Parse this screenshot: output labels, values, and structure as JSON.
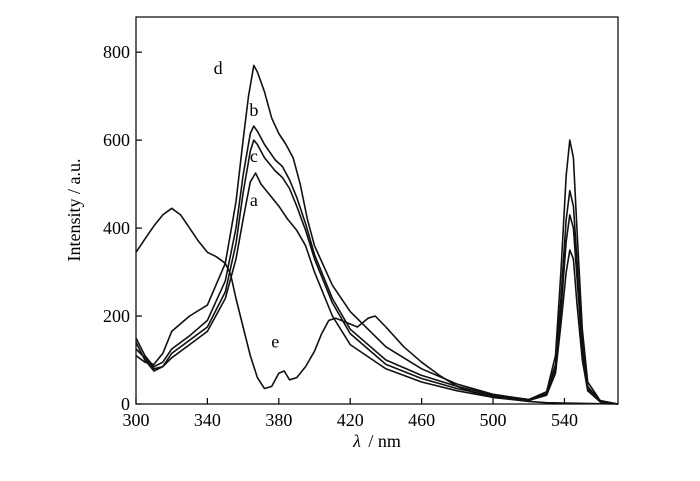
{
  "chart_data": {
    "type": "line",
    "title": "",
    "xlabel_symbol": "λ",
    "xlabel_unit": "/ nm",
    "ylabel": "Intensity / a.u.",
    "xlim": [
      300,
      570
    ],
    "ylim": [
      0,
      880
    ],
    "xticks": [
      300,
      340,
      380,
      420,
      460,
      500,
      540
    ],
    "yticks": [
      0,
      200,
      400,
      600,
      800
    ],
    "grid": false,
    "legend": "none",
    "colors": {
      "lines": "#111111",
      "axes": "#000000",
      "background": "#ffffff"
    },
    "series": [
      {
        "label": "a",
        "label_at": [
          366,
          450
        ],
        "points": [
          [
            300,
            125
          ],
          [
            305,
            105
          ],
          [
            310,
            80
          ],
          [
            315,
            85
          ],
          [
            320,
            105
          ],
          [
            330,
            135
          ],
          [
            340,
            165
          ],
          [
            350,
            240
          ],
          [
            356,
            330
          ],
          [
            360,
            420
          ],
          [
            364,
            505
          ],
          [
            367,
            525
          ],
          [
            370,
            500
          ],
          [
            375,
            475
          ],
          [
            380,
            450
          ],
          [
            385,
            420
          ],
          [
            390,
            395
          ],
          [
            395,
            360
          ],
          [
            400,
            300
          ],
          [
            410,
            200
          ],
          [
            420,
            135
          ],
          [
            440,
            80
          ],
          [
            460,
            50
          ],
          [
            480,
            30
          ],
          [
            500,
            15
          ],
          [
            520,
            8
          ],
          [
            530,
            20
          ],
          [
            535,
            70
          ],
          [
            538,
            180
          ],
          [
            541,
            300
          ],
          [
            543,
            350
          ],
          [
            545,
            330
          ],
          [
            547,
            230
          ],
          [
            550,
            100
          ],
          [
            553,
            30
          ],
          [
            560,
            5
          ],
          [
            570,
            0
          ]
        ]
      },
      {
        "label": "b",
        "label_at": [
          366,
          655
        ],
        "points": [
          [
            300,
            150
          ],
          [
            305,
            110
          ],
          [
            310,
            85
          ],
          [
            315,
            95
          ],
          [
            320,
            125
          ],
          [
            330,
            155
          ],
          [
            340,
            190
          ],
          [
            350,
            280
          ],
          [
            356,
            400
          ],
          [
            360,
            520
          ],
          [
            364,
            615
          ],
          [
            366,
            632
          ],
          [
            368,
            620
          ],
          [
            372,
            590
          ],
          [
            378,
            555
          ],
          [
            382,
            540
          ],
          [
            386,
            510
          ],
          [
            390,
            470
          ],
          [
            395,
            410
          ],
          [
            400,
            340
          ],
          [
            410,
            240
          ],
          [
            420,
            170
          ],
          [
            440,
            100
          ],
          [
            460,
            65
          ],
          [
            480,
            40
          ],
          [
            500,
            20
          ],
          [
            520,
            10
          ],
          [
            530,
            25
          ],
          [
            535,
            90
          ],
          [
            538,
            240
          ],
          [
            541,
            420
          ],
          [
            543,
            485
          ],
          [
            545,
            450
          ],
          [
            547,
            330
          ],
          [
            550,
            140
          ],
          [
            553,
            40
          ],
          [
            560,
            6
          ],
          [
            570,
            0
          ]
        ]
      },
      {
        "label": "c",
        "label_at": [
          366,
          550
        ],
        "points": [
          [
            300,
            140
          ],
          [
            305,
            100
          ],
          [
            310,
            75
          ],
          [
            315,
            85
          ],
          [
            320,
            115
          ],
          [
            330,
            145
          ],
          [
            340,
            175
          ],
          [
            350,
            255
          ],
          [
            356,
            365
          ],
          [
            360,
            480
          ],
          [
            364,
            575
          ],
          [
            366,
            600
          ],
          [
            368,
            590
          ],
          [
            372,
            560
          ],
          [
            378,
            530
          ],
          [
            382,
            515
          ],
          [
            386,
            490
          ],
          [
            390,
            450
          ],
          [
            395,
            395
          ],
          [
            400,
            330
          ],
          [
            410,
            230
          ],
          [
            420,
            160
          ],
          [
            440,
            90
          ],
          [
            460,
            58
          ],
          [
            480,
            35
          ],
          [
            500,
            18
          ],
          [
            520,
            8
          ],
          [
            530,
            22
          ],
          [
            535,
            80
          ],
          [
            538,
            210
          ],
          [
            541,
            370
          ],
          [
            543,
            430
          ],
          [
            545,
            400
          ],
          [
            547,
            290
          ],
          [
            550,
            120
          ],
          [
            553,
            35
          ],
          [
            560,
            5
          ],
          [
            570,
            0
          ]
        ]
      },
      {
        "label": "d",
        "label_at": [
          346,
          750
        ],
        "points": [
          [
            300,
            110
          ],
          [
            305,
            95
          ],
          [
            310,
            90
          ],
          [
            315,
            115
          ],
          [
            320,
            165
          ],
          [
            330,
            200
          ],
          [
            340,
            225
          ],
          [
            350,
            320
          ],
          [
            356,
            460
          ],
          [
            360,
            600
          ],
          [
            363,
            700
          ],
          [
            366,
            770
          ],
          [
            368,
            755
          ],
          [
            372,
            710
          ],
          [
            376,
            650
          ],
          [
            380,
            615
          ],
          [
            384,
            590
          ],
          [
            388,
            560
          ],
          [
            392,
            500
          ],
          [
            396,
            420
          ],
          [
            400,
            360
          ],
          [
            410,
            270
          ],
          [
            420,
            210
          ],
          [
            440,
            130
          ],
          [
            460,
            80
          ],
          [
            480,
            45
          ],
          [
            500,
            22
          ],
          [
            520,
            10
          ],
          [
            530,
            28
          ],
          [
            535,
            110
          ],
          [
            538,
            300
          ],
          [
            541,
            520
          ],
          [
            543,
            600
          ],
          [
            545,
            560
          ],
          [
            547,
            400
          ],
          [
            550,
            170
          ],
          [
            553,
            50
          ],
          [
            560,
            8
          ],
          [
            570,
            0
          ]
        ]
      },
      {
        "label": "e",
        "label_at": [
          378,
          128
        ],
        "points": [
          [
            300,
            345
          ],
          [
            305,
            375
          ],
          [
            310,
            405
          ],
          [
            315,
            430
          ],
          [
            320,
            445
          ],
          [
            325,
            430
          ],
          [
            330,
            400
          ],
          [
            335,
            370
          ],
          [
            340,
            345
          ],
          [
            345,
            335
          ],
          [
            350,
            320
          ],
          [
            353,
            295
          ],
          [
            356,
            240
          ],
          [
            360,
            175
          ],
          [
            364,
            110
          ],
          [
            368,
            60
          ],
          [
            372,
            35
          ],
          [
            376,
            40
          ],
          [
            380,
            70
          ],
          [
            383,
            75
          ],
          [
            386,
            55
          ],
          [
            390,
            60
          ],
          [
            395,
            85
          ],
          [
            400,
            120
          ],
          [
            404,
            160
          ],
          [
            408,
            190
          ],
          [
            412,
            195
          ],
          [
            418,
            185
          ],
          [
            424,
            175
          ],
          [
            430,
            195
          ],
          [
            434,
            200
          ],
          [
            440,
            175
          ],
          [
            450,
            130
          ],
          [
            460,
            95
          ],
          [
            470,
            65
          ],
          [
            480,
            40
          ],
          [
            490,
            25
          ],
          [
            500,
            15
          ],
          [
            520,
            6
          ],
          [
            530,
            3
          ],
          [
            540,
            2
          ],
          [
            570,
            0
          ]
        ]
      }
    ]
  }
}
